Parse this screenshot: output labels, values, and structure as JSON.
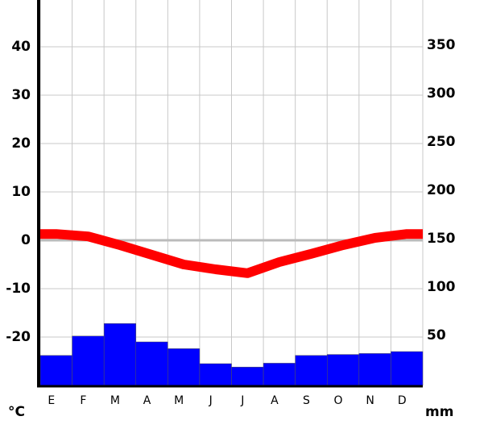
{
  "chart_data": {
    "type": "climograph",
    "categories": [
      "E",
      "F",
      "M",
      "A",
      "M",
      "J",
      "J",
      "A",
      "S",
      "O",
      "N",
      "D"
    ],
    "series": [
      {
        "type": "line",
        "axis": "y",
        "color": "#ff0000",
        "values": [
          1.3,
          0.8,
          -1,
          -3,
          -5,
          -6,
          -6.8,
          -4.5,
          -2.8,
          -1,
          0.5,
          1.3
        ]
      },
      {
        "type": "bar",
        "axis": "y2",
        "color": "#0000ff",
        "values": [
          31,
          51,
          64,
          45,
          38,
          22.5,
          19,
          23,
          31,
          32,
          33,
          35
        ]
      }
    ],
    "ylim": [
      -30,
      50
    ],
    "yticks": [
      -20,
      -10,
      0,
      10,
      20,
      30,
      40
    ],
    "y2lim": [
      0,
      400
    ],
    "y2ticks": [
      50,
      100,
      150,
      200,
      250,
      300,
      350
    ],
    "y_label": "°C",
    "y2_label": "mm",
    "grid": true
  }
}
